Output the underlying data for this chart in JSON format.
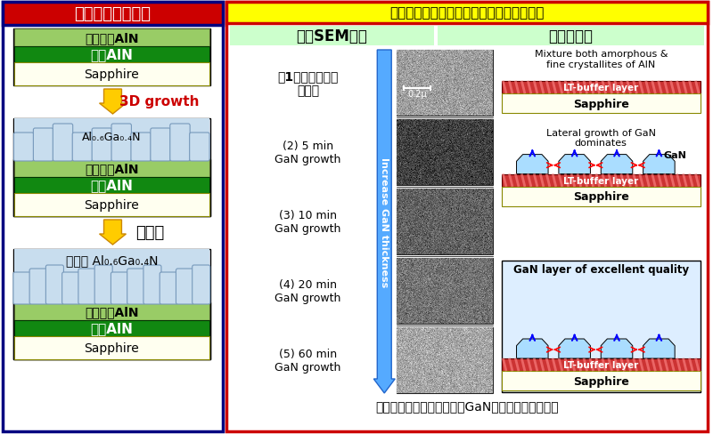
{
  "left_panel_title": "本研究课题的方法",
  "left_panel_bg": "#ffffff",
  "left_panel_border": "#000080",
  "left_title_bg": "#cc0000",
  "left_title_color": "#ffffff",
  "right_panel_title": "赤崎教授在诺贝尔演讲中使用的幻灯片摘录",
  "right_panel_bg": "#ffffff",
  "right_panel_border": "#cc0000",
  "right_title_bg": "#ffff00",
  "right_title_color": "#000000",
  "sem_label": "表面SEM照片",
  "model_label": "生长模型图",
  "sem_label_bg": "#ccffcc",
  "model_label_bg": "#ccffcc",
  "layer_sapphire_color": "#fffff0",
  "layer_sputter_aln_color": "#118811",
  "layer_homo_aln_color": "#99cc66",
  "layer_algagan_color": "#c8ddee",
  "arrow_color": "#ffcc00",
  "growth_3d_label": "3D growth",
  "flat_label": "平坦化",
  "footer_text": "利用低温缓冲层获得高品种GaN的方法（赤崎方式）",
  "gan_arrow_color": "#55aaff",
  "increase_label": "Increase GaN thickness",
  "mixture_text": "Mixture both amorphous &\nfine crystallites of AlN",
  "lateral_text": "Lateral growth of GaN\ndominates",
  "excellent_text": "GaN layer of excellent quality",
  "lt_buffer_color": "#cc4444",
  "gan_color": "#aaddff",
  "cjk_font": "Noto Sans CJK SC",
  "sem_gray_vals": [
    0.62,
    0.25,
    0.38,
    0.45,
    0.65
  ]
}
